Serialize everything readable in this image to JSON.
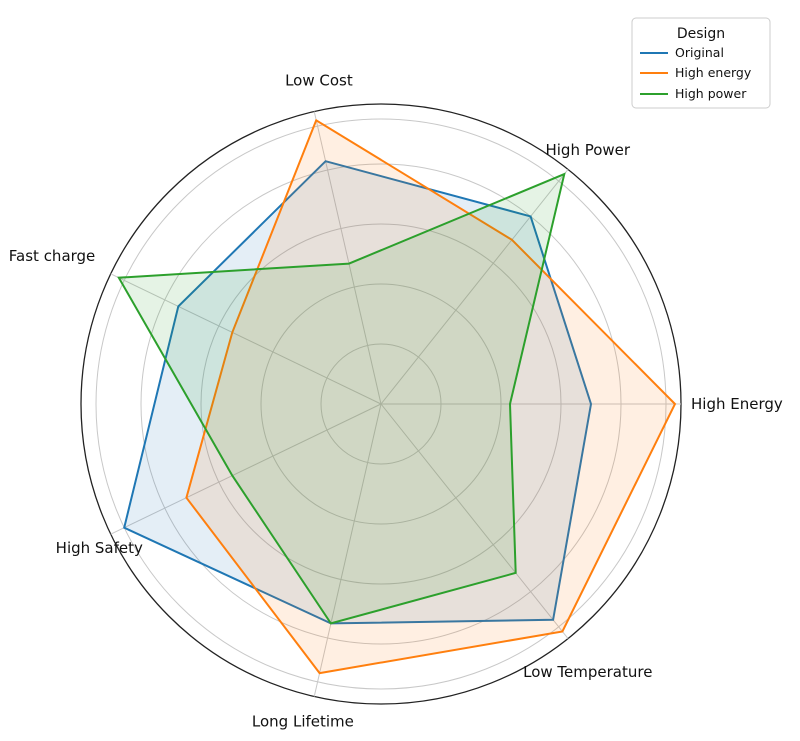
{
  "chart_data": {
    "type": "radar",
    "categories": [
      "High Energy",
      "High Power",
      "Low Cost",
      "Fast charge",
      "High Safety",
      "Long Lifetime",
      "Low Temperature"
    ],
    "series": [
      {
        "name": "Original",
        "values": [
          0.7,
          0.8,
          0.83,
          0.75,
          0.95,
          0.75,
          0.92
        ],
        "color": "#1f77b4"
      },
      {
        "name": "High energy",
        "values": [
          0.98,
          0.7,
          0.97,
          0.55,
          0.72,
          0.92,
          0.97
        ],
        "color": "#ff7f0e"
      },
      {
        "name": "High power",
        "values": [
          0.43,
          0.98,
          0.48,
          0.97,
          0.55,
          0.75,
          0.72
        ],
        "color": "#2ca02c"
      }
    ],
    "rlim": [
      0,
      1
    ],
    "grid": true,
    "legend": {
      "title": "Design",
      "placement": "top-right"
    }
  }
}
